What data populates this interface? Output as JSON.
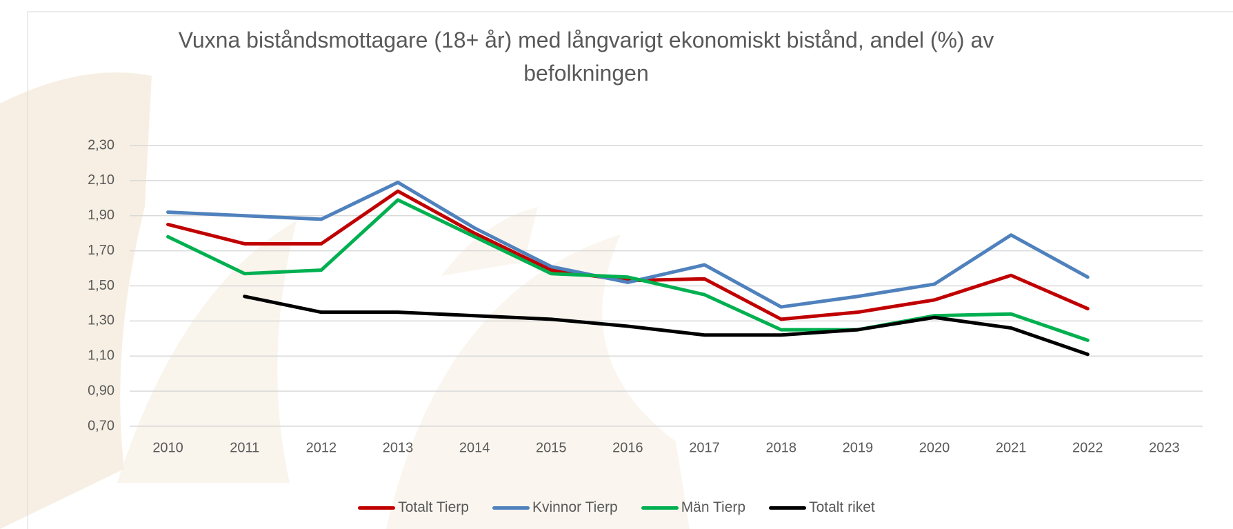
{
  "chart_data": {
    "type": "line",
    "title": "Vuxna biståndsmottagare (18+ år) med långvarigt ekonomiskt bistånd, andel (%) av befolkningen",
    "categories": [
      "2010",
      "2011",
      "2012",
      "2013",
      "2014",
      "2015",
      "2016",
      "2017",
      "2018",
      "2019",
      "2020",
      "2021",
      "2022",
      "2023"
    ],
    "series": [
      {
        "name": "Totalt Tierp",
        "color": "#c00000",
        "values": [
          1.85,
          1.74,
          1.74,
          2.04,
          1.8,
          1.59,
          1.53,
          1.54,
          1.31,
          1.35,
          1.42,
          1.56,
          1.37,
          null
        ]
      },
      {
        "name": "Kvinnor Tierp",
        "color": "#4f81bd",
        "values": [
          1.92,
          1.9,
          1.88,
          2.09,
          1.83,
          1.61,
          1.52,
          1.62,
          1.38,
          1.44,
          1.51,
          1.79,
          1.55,
          null
        ]
      },
      {
        "name": "Män Tierp",
        "color": "#00b050",
        "values": [
          1.78,
          1.57,
          1.59,
          1.99,
          1.78,
          1.57,
          1.55,
          1.45,
          1.25,
          1.25,
          1.33,
          1.34,
          1.19,
          null
        ]
      },
      {
        "name": "Totalt riket",
        "color": "#000000",
        "values": [
          null,
          1.44,
          1.35,
          1.35,
          1.33,
          1.31,
          1.27,
          1.22,
          1.22,
          1.25,
          1.32,
          1.26,
          1.11,
          null
        ]
      }
    ],
    "ylim": [
      0.7,
      2.3
    ],
    "yticks": [
      {
        "value": 0.7,
        "label": "0,70"
      },
      {
        "value": 0.9,
        "label": "0,90"
      },
      {
        "value": 1.1,
        "label": "1,10"
      },
      {
        "value": 1.3,
        "label": "1,30"
      },
      {
        "value": 1.5,
        "label": "1,50"
      },
      {
        "value": 1.7,
        "label": "1,70"
      },
      {
        "value": 1.9,
        "label": "1,90"
      },
      {
        "value": 2.1,
        "label": "2,10"
      },
      {
        "value": 2.3,
        "label": "2,30"
      }
    ],
    "grid": true
  }
}
